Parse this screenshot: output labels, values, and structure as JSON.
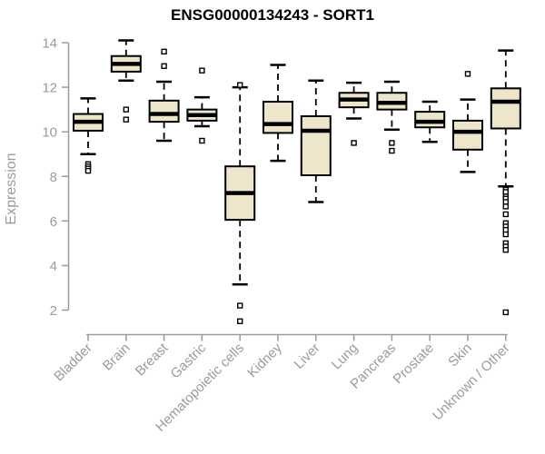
{
  "colors": {
    "background": "#FFFFFF",
    "box_fill": "#EDE6CB",
    "box_stroke": "#000000",
    "axis_line": "#9B9B9B",
    "axis_text": "#9B9B9B",
    "title_text": "#000000"
  },
  "chart_data": {
    "type": "boxplot",
    "title": "ENSG00000134243 - SORT1",
    "xlabel": "",
    "ylabel": "Expression",
    "ylim": [
      2,
      14
    ],
    "yticks": [
      2,
      4,
      6,
      8,
      10,
      12,
      14
    ],
    "grid": false,
    "legend": false,
    "categories": [
      "Bladder",
      "Brain",
      "Breast",
      "Gastric",
      "Hematopoietic cells",
      "Kidney",
      "Liver",
      "Lung",
      "Pancreas",
      "Prostate",
      "Skin",
      "Unknown / Other"
    ],
    "series": [
      {
        "name": "Bladder",
        "low": 9.0,
        "q1": 10.05,
        "median": 10.45,
        "q3": 10.8,
        "high": 11.5,
        "outliers": [
          8.55,
          8.45,
          8.35,
          8.25
        ]
      },
      {
        "name": "Brain",
        "low": 12.3,
        "q1": 12.7,
        "median": 13.05,
        "q3": 13.4,
        "high": 14.1,
        "outliers": [
          11.0,
          10.55
        ]
      },
      {
        "name": "Breast",
        "low": 9.6,
        "q1": 10.45,
        "median": 10.8,
        "q3": 11.4,
        "high": 12.25,
        "outliers": [
          13.6,
          12.95
        ]
      },
      {
        "name": "Gastric",
        "low": 10.25,
        "q1": 10.5,
        "median": 10.75,
        "q3": 11.0,
        "high": 11.55,
        "outliers": [
          12.75,
          9.6
        ]
      },
      {
        "name": "Hematopoietic cells",
        "low": 3.15,
        "q1": 6.05,
        "median": 7.25,
        "q3": 8.45,
        "high": 12.0,
        "outliers": [
          12.1,
          2.2,
          1.5
        ]
      },
      {
        "name": "Kidney",
        "low": 8.7,
        "q1": 9.95,
        "median": 10.35,
        "q3": 11.35,
        "high": 13.0,
        "outliers": []
      },
      {
        "name": "Liver",
        "low": 6.85,
        "q1": 8.05,
        "median": 10.05,
        "q3": 10.7,
        "high": 12.3,
        "outliers": []
      },
      {
        "name": "Lung",
        "low": 10.6,
        "q1": 11.1,
        "median": 11.45,
        "q3": 11.75,
        "high": 12.2,
        "outliers": [
          9.5
        ]
      },
      {
        "name": "Pancreas",
        "low": 10.1,
        "q1": 11.0,
        "median": 11.3,
        "q3": 11.75,
        "high": 12.25,
        "outliers": [
          9.5,
          9.15
        ]
      },
      {
        "name": "Prostate",
        "low": 9.55,
        "q1": 10.2,
        "median": 10.45,
        "q3": 10.9,
        "high": 11.35,
        "outliers": []
      },
      {
        "name": "Skin",
        "low": 8.2,
        "q1": 9.2,
        "median": 10.0,
        "q3": 10.5,
        "high": 11.45,
        "outliers": [
          12.6
        ]
      },
      {
        "name": "Unknown / Other",
        "low": 7.55,
        "q1": 10.15,
        "median": 11.35,
        "q3": 11.95,
        "high": 13.65,
        "outliers": [
          7.4,
          7.3,
          7.1,
          7.0,
          6.85,
          6.65,
          6.3,
          5.9,
          5.75,
          5.6,
          5.4,
          5.0,
          4.85,
          4.7,
          1.9
        ]
      }
    ]
  }
}
